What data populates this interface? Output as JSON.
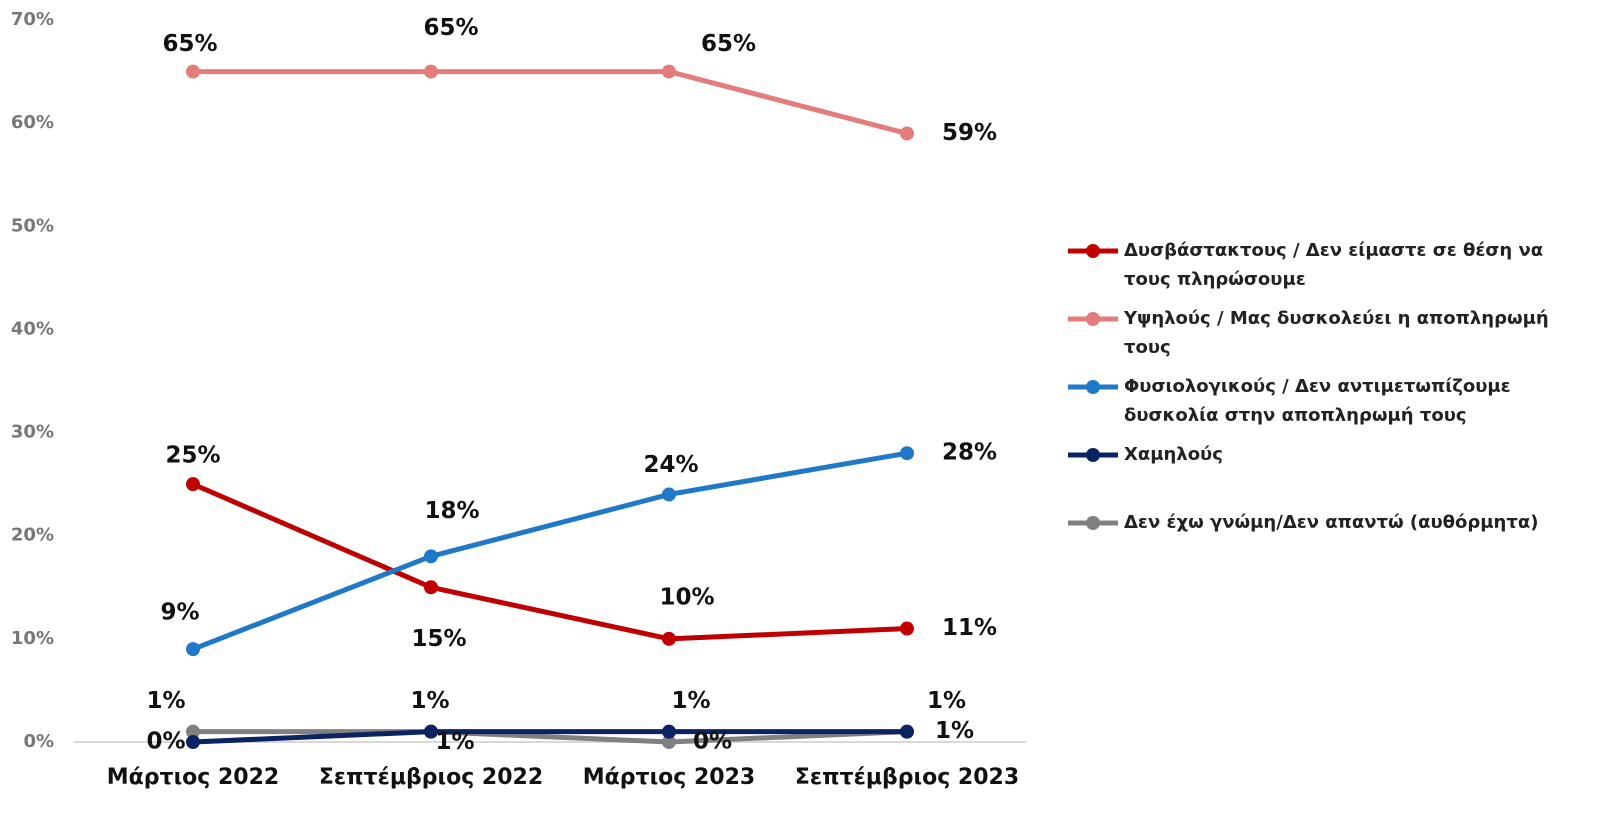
{
  "chart_data": {
    "type": "line",
    "categories": [
      "Μάρτιος 2022",
      "Σεπτέμβριος 2022",
      "Μάρτιος 2023",
      "Σεπτέμβριος 2023"
    ],
    "series": [
      {
        "name": "Δυσβάστακτους / Δεν είμαστε σε θέση να τους πληρώσουμε",
        "color": "#c00000",
        "values": [
          25,
          15,
          10,
          11
        ],
        "value_labels": [
          "25%",
          "15%",
          "10%",
          "11%"
        ]
      },
      {
        "name": "Υψηλούς / Μας δυσκολεύει η αποπληρωμή τους",
        "color": "#e57c7c",
        "values": [
          65,
          65,
          65,
          59
        ],
        "value_labels": [
          "65%",
          "65%",
          "65%",
          "59%"
        ]
      },
      {
        "name": "Φυσιολογικούς / Δεν αντιμετωπίζουμε δυσκολία στην αποπληρωμή τους",
        "color": "#1f78c8",
        "values": [
          9,
          18,
          24,
          28
        ],
        "value_labels": [
          "9%",
          "18%",
          "24%",
          "28%"
        ]
      },
      {
        "name": "Χαμηλούς",
        "color": "#0a2463",
        "values": [
          0,
          1,
          1,
          1
        ],
        "value_labels": [
          "0%",
          "1%",
          "1%",
          "1%"
        ]
      },
      {
        "name": "Δεν έχω γνώμη/Δεν απαντώ (αυθόρμητα)",
        "color": "#808080",
        "values": [
          1,
          1,
          0,
          1
        ],
        "value_labels": [
          "1%",
          "1%",
          "0%",
          "1%"
        ]
      }
    ],
    "ylim": [
      0,
      70
    ],
    "yticks": [
      {
        "value": 0,
        "label": "0%"
      },
      {
        "value": 10,
        "label": "10%"
      },
      {
        "value": 20,
        "label": "20%"
      },
      {
        "value": 30,
        "label": "30%"
      },
      {
        "value": 40,
        "label": "40%"
      },
      {
        "value": 50,
        "label": "50%"
      },
      {
        "value": 60,
        "label": "60%"
      },
      {
        "value": 70,
        "label": "70%"
      }
    ],
    "legend": "right"
  }
}
